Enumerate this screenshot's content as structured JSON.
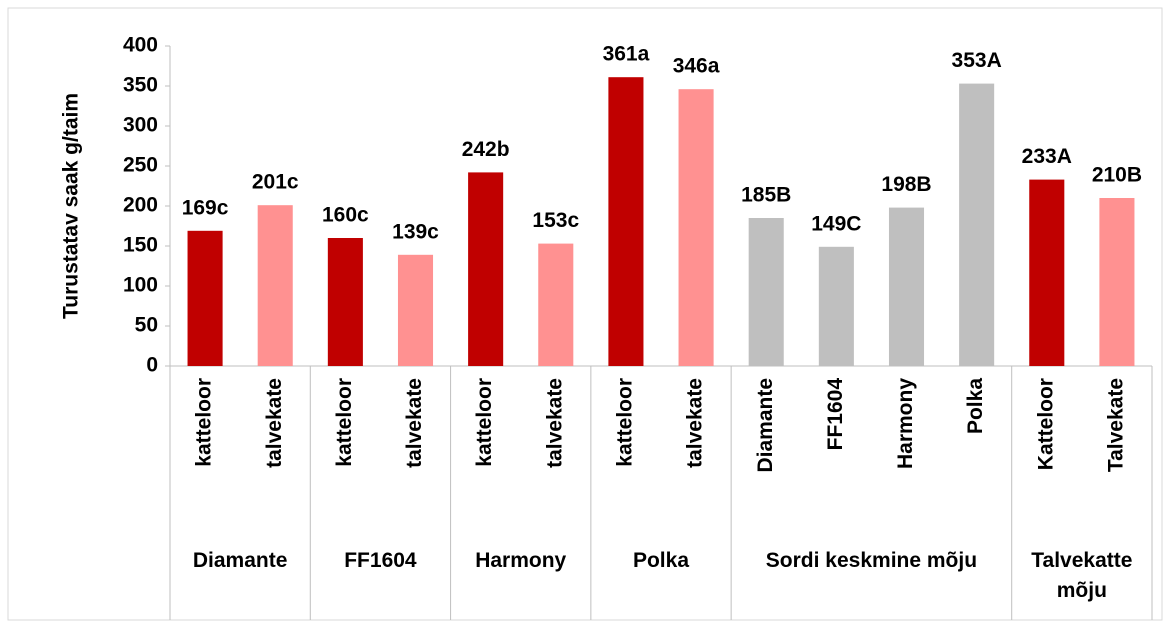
{
  "chart_data": {
    "type": "bar",
    "y_label": "Turustatav saak g/taim",
    "ylim": [
      0,
      400
    ],
    "yticks": [
      0,
      50,
      100,
      150,
      200,
      250,
      300,
      350,
      400
    ],
    "grid": false,
    "groups": [
      {
        "label": "Diamante",
        "categories": [
          "katteloor",
          "talvekate"
        ],
        "values": [
          169,
          201
        ],
        "value_labels": [
          "169c",
          "201c"
        ],
        "colors": [
          "#c00000",
          "#ff9191"
        ]
      },
      {
        "label": "FF1604",
        "categories": [
          "katteloor",
          "talvekate"
        ],
        "values": [
          160,
          139
        ],
        "value_labels": [
          "160c",
          "139c"
        ],
        "colors": [
          "#c00000",
          "#ff9191"
        ]
      },
      {
        "label": "Harmony",
        "categories": [
          "katteloor",
          "talvekate"
        ],
        "values": [
          242,
          153
        ],
        "value_labels": [
          "242b",
          "153c"
        ],
        "colors": [
          "#c00000",
          "#ff9191"
        ]
      },
      {
        "label": "Polka",
        "categories": [
          "katteloor",
          "talvekate"
        ],
        "values": [
          361,
          346
        ],
        "value_labels": [
          "361a",
          "346a"
        ],
        "colors": [
          "#c00000",
          "#ff9191"
        ]
      },
      {
        "label": "Sordi keskmine mõju",
        "categories": [
          "Diamante",
          "FF1604",
          "Harmony",
          "Polka"
        ],
        "values": [
          185,
          149,
          198,
          353
        ],
        "value_labels": [
          "185B",
          "149C",
          "198B",
          "353A"
        ],
        "colors": [
          "#bfbfbf",
          "#bfbfbf",
          "#bfbfbf",
          "#bfbfbf"
        ]
      },
      {
        "label": "Talvekatte mõju",
        "categories": [
          "Katteloor",
          "Talvekate"
        ],
        "values": [
          233,
          210
        ],
        "value_labels": [
          "233A",
          "210B"
        ],
        "colors": [
          "#c00000",
          "#ff9191"
        ]
      }
    ]
  }
}
